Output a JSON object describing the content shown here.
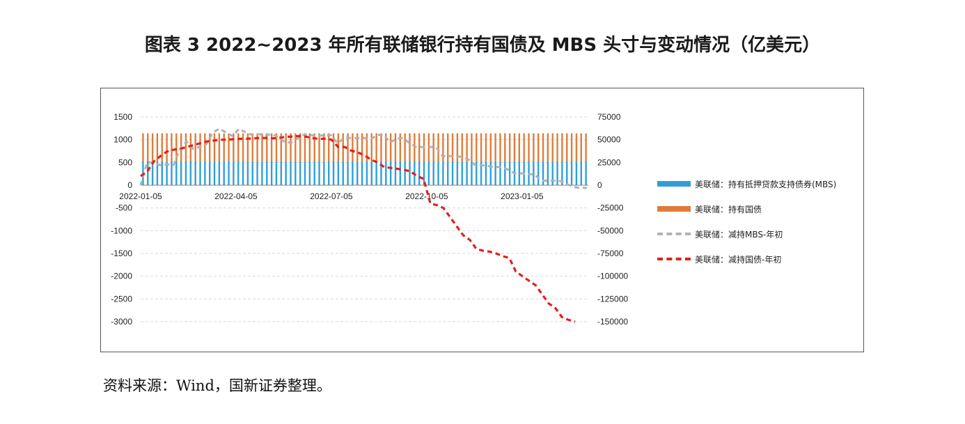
{
  "title": "图表 3 2022~2023 年所有联储银行持有国债及 MBS 头寸与变动情况（亿美元）",
  "source": "资料来源：Wind，国新证券整理。",
  "colors": {
    "mbs": "#2e9fd6",
    "treasury": "#e07b39",
    "dmbs": "#b2b2b2",
    "dtreasury": "#e2211c"
  },
  "chart_data": {
    "type": "bar",
    "left_axis": {
      "ylim": [
        -3000,
        1500
      ],
      "ticks": [
        "1500",
        "1000",
        "500",
        "0",
        "-500",
        "-1000",
        "-1500",
        "-2000",
        "-2500",
        "-3000"
      ]
    },
    "right_axis": {
      "ylim": [
        -150000,
        75000
      ],
      "ticks": [
        "75000",
        "50000",
        "25000",
        "0",
        "-25000",
        "-50000",
        "-75000",
        "-100000",
        "-125000",
        "-150000"
      ]
    },
    "x_tick_labels": [
      "2022-01-05",
      "2022-04-05",
      "2022-07-05",
      "2022-10-05",
      "2023-01-05"
    ],
    "series": [
      {
        "name": "美联储：持有抵押贷款支持债券(MBS)",
        "type": "bar",
        "axis": "left",
        "values": [
          520,
          520,
          520,
          520,
          520,
          520,
          520,
          520,
          520,
          520,
          520,
          520,
          520,
          520,
          520,
          520,
          520,
          520,
          520,
          520,
          520,
          520,
          520,
          520,
          520,
          520,
          520,
          520,
          520,
          520,
          520,
          520,
          520,
          520,
          520,
          520,
          520,
          520,
          520,
          520,
          520,
          520,
          520,
          520,
          520,
          520,
          520,
          520,
          520,
          520,
          520,
          520,
          520,
          520,
          520,
          520,
          520,
          520,
          520,
          520,
          520,
          520,
          520,
          520,
          520,
          520,
          520,
          520,
          520,
          520,
          520,
          520,
          520,
          520,
          520,
          520,
          520,
          520,
          520,
          520,
          520,
          520,
          520,
          520,
          520,
          520,
          520,
          520,
          520,
          520,
          520,
          520,
          520,
          520
        ]
      },
      {
        "name": "美联储：持有国债",
        "type": "bar",
        "axis": "left",
        "values": [
          1140,
          1140,
          1140,
          1140,
          1140,
          1140,
          1140,
          1140,
          1140,
          1140,
          1140,
          1140,
          1140,
          1140,
          1140,
          1140,
          1140,
          1140,
          1140,
          1140,
          1140,
          1140,
          1140,
          1140,
          1140,
          1140,
          1140,
          1140,
          1140,
          1140,
          1140,
          1140,
          1140,
          1140,
          1140,
          1140,
          1140,
          1140,
          1140,
          1140,
          1140,
          1140,
          1140,
          1140,
          1140,
          1140,
          1140,
          1140,
          1140,
          1140,
          1140,
          1140,
          1140,
          1140,
          1140,
          1140,
          1140,
          1140,
          1140,
          1140,
          1140,
          1140,
          1140,
          1140,
          1140,
          1140,
          1140,
          1140,
          1140,
          1140,
          1140,
          1140,
          1140,
          1140,
          1140,
          1140,
          1140,
          1140,
          1140,
          1140,
          1140,
          1140,
          1140,
          1140,
          1140,
          1140,
          1140,
          1140,
          1140,
          1140,
          1140,
          1140,
          1140,
          1140
        ]
      },
      {
        "name": "美联储：减持MBS-年初",
        "type": "line",
        "axis": "right",
        "values": [
          0,
          25000,
          25000,
          22000,
          23000,
          22000,
          40000,
          48000,
          40000,
          42000,
          45000,
          58000,
          62000,
          58000,
          54000,
          62000,
          58000,
          55000,
          56000,
          55000,
          56000,
          53000,
          47000,
          47000,
          52000,
          56000,
          55000,
          54000,
          55000,
          55000,
          46000,
          52000,
          52000,
          52000,
          52000,
          50000,
          55000,
          56000,
          47000,
          51000,
          52000,
          46000,
          42000,
          42000,
          42000,
          42000,
          32000,
          32000,
          32000,
          31000,
          28000,
          22000,
          22000,
          21000,
          20000,
          20000,
          17000,
          13000,
          13000,
          12000,
          12000,
          5000,
          5000,
          5000,
          4500,
          1000,
          -2000,
          -3000,
          -3000
        ]
      },
      {
        "name": "美联储：减持国债-年初",
        "type": "line",
        "axis": "right",
        "values": [
          10000,
          15000,
          26000,
          32000,
          37000,
          39000,
          40000,
          42000,
          44000,
          46000,
          48000,
          49000,
          50000,
          50000,
          50500,
          51000,
          51000,
          51500,
          52000,
          52000,
          51500,
          52000,
          53000,
          53500,
          54000,
          53500,
          52000,
          51000,
          51000,
          50000,
          42000,
          42000,
          38000,
          36000,
          33000,
          28000,
          25000,
          20000,
          19000,
          18000,
          17000,
          15000,
          10000,
          7000,
          -20000,
          -22000,
          -25000,
          -35000,
          -45000,
          -55000,
          -60000,
          -70000,
          -72000,
          -73000,
          -75000,
          -78000,
          -80000,
          -95000,
          -100000,
          -105000,
          -110000,
          -120000,
          -130000,
          -135000,
          -145000,
          -148000,
          -150000
        ]
      }
    ]
  }
}
